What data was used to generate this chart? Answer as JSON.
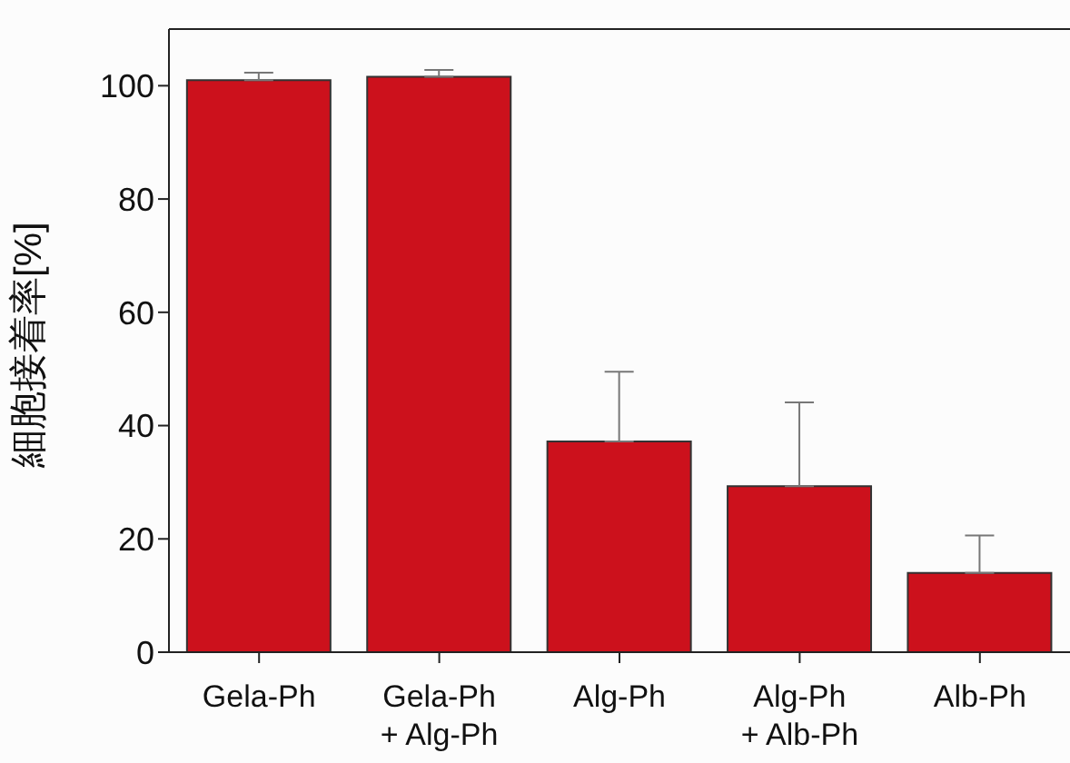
{
  "chart_data": {
    "type": "bar",
    "ylabel": "細胞接着率[%]",
    "categories": [
      "Gela-Ph",
      "Gela-Ph\n+ Alg-Ph",
      "Alg-Ph",
      "Alg-Ph\n+ Alb-Ph",
      "Alb-Ph"
    ],
    "values": [
      101.0,
      101.6,
      37.2,
      29.3,
      14.0
    ],
    "errors": [
      [
        101.0,
        102.3
      ],
      [
        101.6,
        102.8
      ],
      [
        37.2,
        49.5
      ],
      [
        29.3,
        44.1
      ],
      [
        14.0,
        20.6
      ]
    ],
    "color": "#cc111c",
    "ylim": [
      0,
      110
    ],
    "yticks": [
      0,
      20,
      40,
      60,
      80,
      100
    ],
    "grid": false
  }
}
